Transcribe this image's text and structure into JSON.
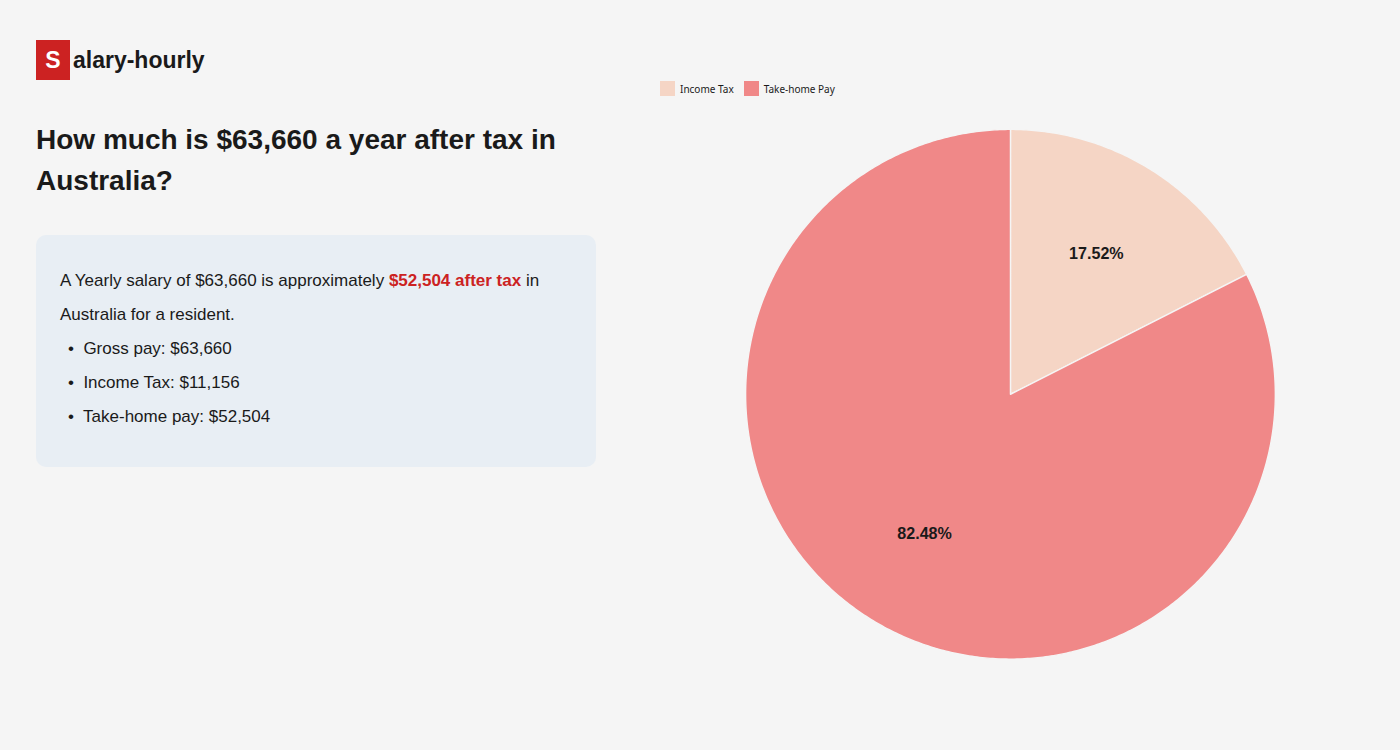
{
  "chart_data": {
    "type": "pie",
    "title": "How much is $63,660 a year after tax in\nAustralia?",
    "categories": [
      "Income Tax",
      "Take-home Pay"
    ],
    "values": [
      17.52,
      82.48
    ],
    "value_labels": [
      "17.52%",
      "82.48%"
    ],
    "colors": [
      "#f5d5c5",
      "#f08888"
    ],
    "data_labels": true,
    "legend": "top",
    "annotations": [
      {
        "text": "S",
        "color": "#cc2222"
      },
      {
        "text": "alary-hourly"
      },
      {
        "text": "A Yearly salary of $63,660 is approximately "
      },
      {
        "text": "$52,504 after tax",
        "color": "#cc2222"
      },
      {
        "text": " in"
      },
      {
        "text": "Australia for a resident."
      },
      {
        "text": "•  Gross pay: $63,660"
      },
      {
        "text": "•  Income Tax: $11,156"
      },
      {
        "text": "•  Take-home pay: $52,504"
      }
    ]
  }
}
